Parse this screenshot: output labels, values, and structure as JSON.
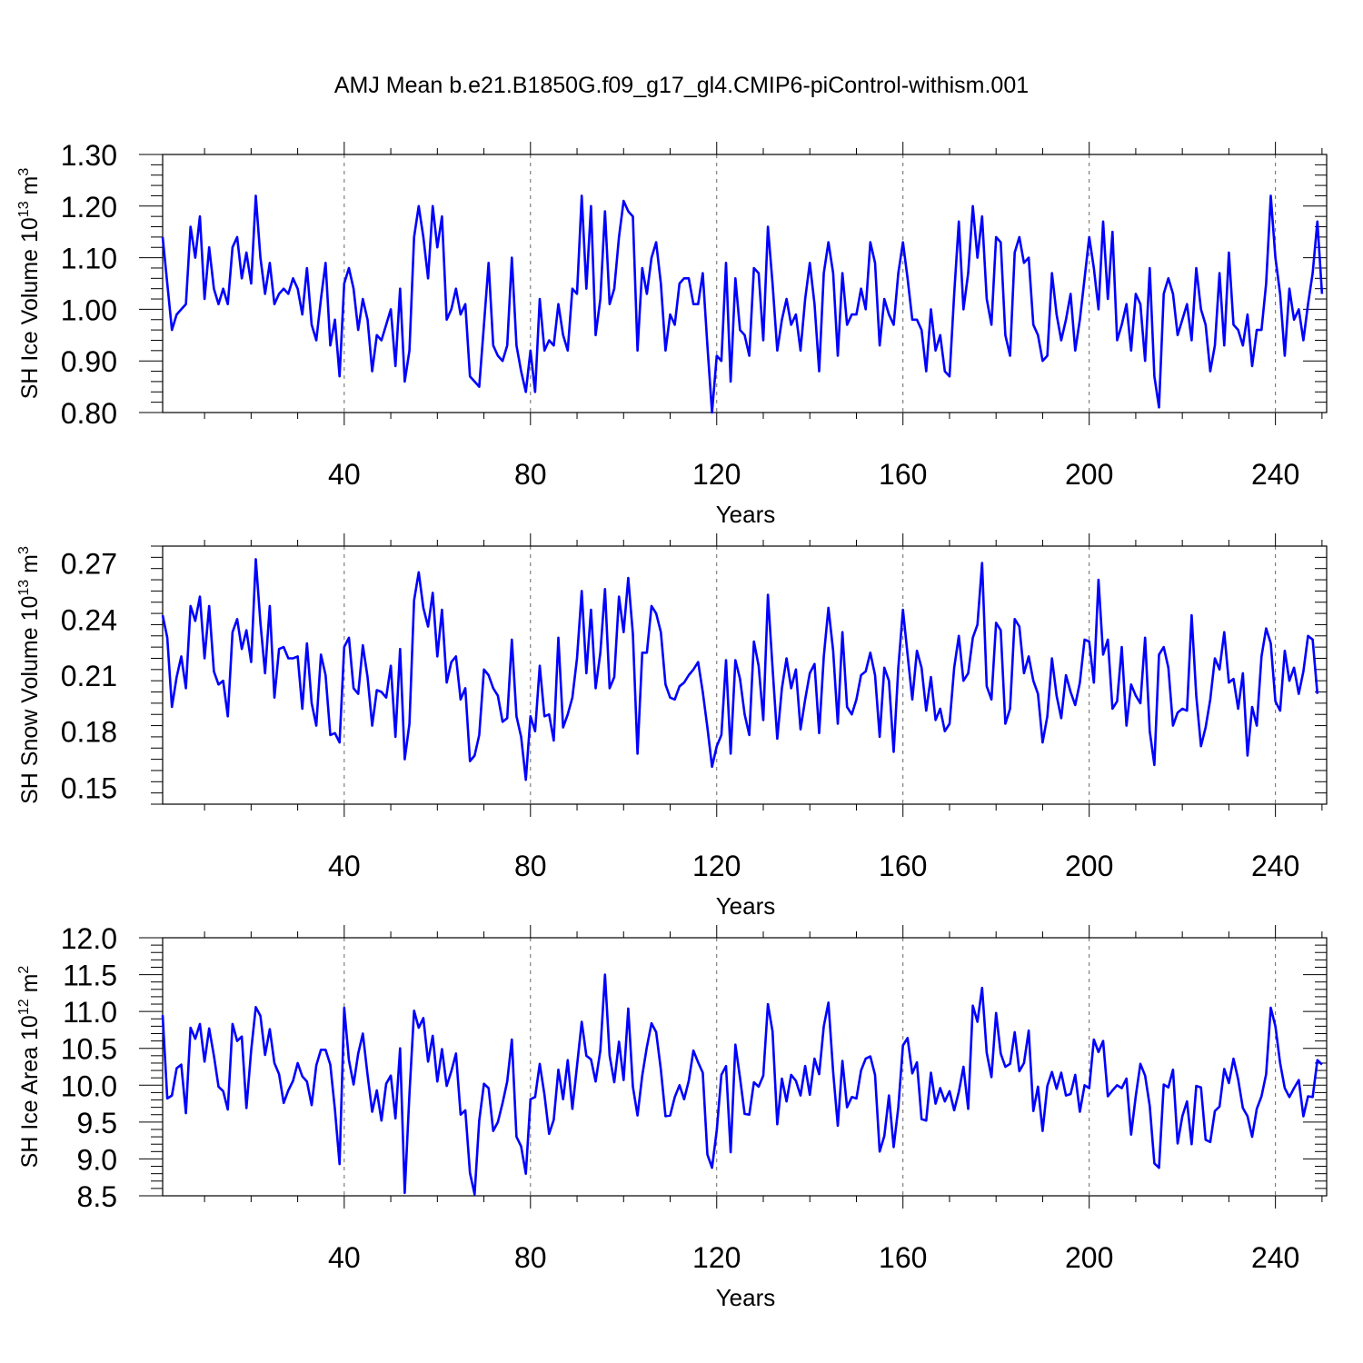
{
  "title": "AMJ Mean b.e21.B1850G.f09_g17_gl4.CMIP6-piControl-withism.001",
  "colors": {
    "line": "#0000ff",
    "axis": "#000000",
    "grid": "#666666"
  },
  "chart_data": [
    {
      "type": "line",
      "ylabel": "SH Ice Volume 10",
      "ylabel_sup": "13",
      "ylabel_unit": " m",
      "ylabel_unit_sup": "3",
      "xlabel": "Years",
      "xlim": [
        1,
        251
      ],
      "ylim": [
        0.8,
        1.3
      ],
      "xticks": [
        "40",
        "80",
        "120",
        "160",
        "200",
        "240"
      ],
      "yticks": [
        "0.80",
        "0.90",
        "1.00",
        "1.10",
        "1.20",
        "1.30"
      ],
      "series": [
        {
          "name": "SH Ice Volume",
          "start_year": 1,
          "values": [
            1.14,
            1.05,
            0.96,
            0.99,
            1.0,
            1.01,
            1.16,
            1.1,
            1.18,
            1.02,
            1.12,
            1.04,
            1.01,
            1.04,
            1.01,
            1.12,
            1.14,
            1.06,
            1.11,
            1.05,
            1.22,
            1.1,
            1.03,
            1.09,
            1.01,
            1.03,
            1.04,
            1.03,
            1.06,
            1.04,
            0.99,
            1.08,
            0.97,
            0.94,
            1.02,
            1.09,
            0.93,
            0.98,
            0.87,
            1.05,
            1.08,
            1.04,
            0.96,
            1.02,
            0.98,
            0.88,
            0.95,
            0.94,
            0.97,
            1.0,
            0.89,
            1.04,
            0.86,
            0.92,
            1.14,
            1.2,
            1.14,
            1.06,
            1.2,
            1.12,
            1.18,
            0.98,
            1.0,
            1.04,
            0.99,
            1.01,
            0.87,
            0.86,
            0.85,
            0.97,
            1.09,
            0.93,
            0.91,
            0.9,
            0.93,
            1.1,
            0.93,
            0.88,
            0.84,
            0.92,
            0.84,
            1.02,
            0.92,
            0.94,
            0.93,
            1.01,
            0.95,
            0.92,
            1.04,
            1.03,
            1.22,
            1.04,
            1.2,
            0.95,
            1.02,
            1.19,
            1.01,
            1.04,
            1.14,
            1.21,
            1.19,
            1.18,
            0.92,
            1.08,
            1.03,
            1.1,
            1.13,
            1.05,
            0.92,
            0.99,
            0.97,
            1.05,
            1.06,
            1.06,
            1.01,
            1.01,
            1.07,
            0.93,
            0.8,
            0.91,
            0.9,
            1.09,
            0.86,
            1.06,
            0.96,
            0.95,
            0.91,
            1.08,
            1.07,
            0.94,
            1.16,
            1.05,
            0.92,
            0.98,
            1.02,
            0.97,
            0.99,
            0.92,
            1.02,
            1.09,
            1.01,
            0.88,
            1.07,
            1.13,
            1.07,
            0.91,
            1.07,
            0.97,
            0.99,
            0.99,
            1.04,
            1.0,
            1.13,
            1.09,
            0.93,
            1.02,
            0.99,
            0.97,
            1.07,
            1.13,
            1.06,
            0.98,
            0.98,
            0.96,
            0.88,
            1.0,
            0.92,
            0.95,
            0.88,
            0.87,
            1.03,
            1.17,
            1.0,
            1.07,
            1.2,
            1.1,
            1.18,
            1.02,
            0.97,
            1.14,
            1.13,
            0.95,
            0.91,
            1.11,
            1.14,
            1.09,
            1.1,
            0.97,
            0.95,
            0.9,
            0.91,
            1.07,
            0.99,
            0.94,
            0.98,
            1.03,
            0.92,
            0.98,
            1.06,
            1.14,
            1.08,
            1.0,
            1.17,
            1.02,
            1.15,
            0.94,
            0.97,
            1.01,
            0.92,
            1.03,
            1.01,
            0.9,
            1.08,
            0.87,
            0.81,
            1.03,
            1.06,
            1.03,
            0.95,
            0.98,
            1.01,
            0.94,
            1.08,
            1.0,
            0.97,
            0.88,
            0.93,
            1.07,
            0.93,
            1.11,
            0.97,
            0.96,
            0.93,
            0.99,
            0.89,
            0.96,
            0.96,
            1.05,
            1.22,
            1.1,
            1.03,
            0.91,
            1.04,
            0.98,
            1.0,
            0.94,
            1.01,
            1.07,
            1.17,
            1.03
          ]
        }
      ]
    },
    {
      "type": "line",
      "ylabel": "SH Snow Volume 10",
      "ylabel_sup": "13",
      "ylabel_unit": " m",
      "ylabel_unit_sup": "3",
      "xlabel": "Years",
      "xlim": [
        1,
        251
      ],
      "ylim": [
        0.141,
        0.279
      ],
      "xticks": [
        "40",
        "80",
        "120",
        "160",
        "200",
        "240"
      ],
      "yticks": [
        "0.15",
        "0.18",
        "0.21",
        "0.24",
        "0.27"
      ],
      "series": [
        {
          "name": "SH Snow Volume",
          "start_year": 1,
          "values": [
            0.242,
            0.23,
            0.193,
            0.209,
            0.22,
            0.203,
            0.247,
            0.239,
            0.252,
            0.219,
            0.247,
            0.212,
            0.205,
            0.207,
            0.188,
            0.233,
            0.24,
            0.224,
            0.234,
            0.217,
            0.272,
            0.238,
            0.211,
            0.247,
            0.198,
            0.224,
            0.225,
            0.219,
            0.219,
            0.22,
            0.192,
            0.227,
            0.195,
            0.183,
            0.221,
            0.21,
            0.178,
            0.179,
            0.174,
            0.225,
            0.23,
            0.203,
            0.2,
            0.226,
            0.209,
            0.183,
            0.202,
            0.201,
            0.198,
            0.215,
            0.177,
            0.224,
            0.165,
            0.184,
            0.25,
            0.265,
            0.246,
            0.236,
            0.254,
            0.22,
            0.245,
            0.206,
            0.217,
            0.22,
            0.197,
            0.203,
            0.164,
            0.167,
            0.178,
            0.213,
            0.21,
            0.203,
            0.199,
            0.185,
            0.187,
            0.229,
            0.188,
            0.177,
            0.154,
            0.188,
            0.18,
            0.215,
            0.188,
            0.189,
            0.175,
            0.23,
            0.182,
            0.189,
            0.198,
            0.219,
            0.255,
            0.211,
            0.245,
            0.203,
            0.222,
            0.256,
            0.203,
            0.209,
            0.252,
            0.233,
            0.262,
            0.232,
            0.168,
            0.222,
            0.222,
            0.247,
            0.243,
            0.233,
            0.205,
            0.198,
            0.197,
            0.204,
            0.206,
            0.21,
            0.213,
            0.217,
            0.201,
            0.182,
            0.161,
            0.172,
            0.178,
            0.218,
            0.168,
            0.218,
            0.208,
            0.189,
            0.178,
            0.228,
            0.215,
            0.186,
            0.253,
            0.214,
            0.176,
            0.203,
            0.219,
            0.203,
            0.213,
            0.181,
            0.197,
            0.211,
            0.216,
            0.179,
            0.22,
            0.246,
            0.223,
            0.184,
            0.233,
            0.193,
            0.189,
            0.197,
            0.21,
            0.212,
            0.222,
            0.21,
            0.177,
            0.214,
            0.207,
            0.169,
            0.214,
            0.245,
            0.221,
            0.197,
            0.223,
            0.214,
            0.191,
            0.209,
            0.186,
            0.192,
            0.18,
            0.184,
            0.214,
            0.231,
            0.207,
            0.211,
            0.23,
            0.237,
            0.27,
            0.204,
            0.197,
            0.238,
            0.234,
            0.184,
            0.192,
            0.24,
            0.236,
            0.211,
            0.22,
            0.207,
            0.2,
            0.174,
            0.188,
            0.219,
            0.199,
            0.187,
            0.21,
            0.201,
            0.194,
            0.206,
            0.229,
            0.228,
            0.206,
            0.261,
            0.221,
            0.229,
            0.192,
            0.196,
            0.225,
            0.183,
            0.205,
            0.199,
            0.195,
            0.23,
            0.18,
            0.162,
            0.221,
            0.225,
            0.214,
            0.183,
            0.19,
            0.192,
            0.191,
            0.242,
            0.199,
            0.172,
            0.182,
            0.197,
            0.219,
            0.213,
            0.233,
            0.206,
            0.208,
            0.192,
            0.211,
            0.167,
            0.193,
            0.183,
            0.22,
            0.235,
            0.227,
            0.196,
            0.191,
            0.223,
            0.207,
            0.214,
            0.2,
            0.212,
            0.231,
            0.229,
            0.2
          ]
        }
      ]
    },
    {
      "type": "line",
      "ylabel": "SH Ice Area 10",
      "ylabel_sup": "12",
      "ylabel_unit": " m",
      "ylabel_unit_sup": "2",
      "xlabel": "Years",
      "xlim": [
        1,
        251
      ],
      "ylim": [
        8.5,
        12.0
      ],
      "xticks": [
        "40",
        "80",
        "120",
        "160",
        "200",
        "240"
      ],
      "yticks": [
        "8.5",
        "9.0",
        "9.5",
        "10.0",
        "10.5",
        "11.0",
        "11.5",
        "12.0"
      ],
      "series": [
        {
          "name": "SH Ice Area",
          "start_year": 1,
          "values": [
            10.95,
            9.82,
            9.86,
            10.23,
            10.28,
            9.62,
            10.78,
            10.63,
            10.83,
            10.32,
            10.77,
            10.4,
            9.98,
            9.92,
            9.67,
            10.83,
            10.6,
            10.66,
            9.69,
            10.47,
            11.06,
            10.94,
            10.41,
            10.76,
            10.3,
            10.15,
            9.76,
            9.93,
            10.06,
            10.3,
            10.12,
            10.05,
            9.73,
            10.27,
            10.48,
            10.48,
            10.28,
            9.67,
            8.93,
            11.05,
            10.34,
            10.01,
            10.43,
            10.7,
            10.14,
            9.64,
            9.93,
            9.52,
            10.02,
            10.13,
            9.55,
            10.5,
            8.54,
            9.88,
            11.01,
            10.78,
            10.91,
            10.32,
            10.67,
            10.05,
            10.49,
            9.99,
            10.19,
            10.43,
            9.6,
            9.66,
            8.81,
            8.52,
            9.52,
            10.02,
            9.96,
            9.38,
            9.5,
            9.76,
            10.05,
            10.62,
            9.3,
            9.17,
            8.8,
            9.81,
            9.84,
            10.29,
            9.87,
            9.34,
            9.53,
            10.21,
            9.81,
            10.34,
            9.68,
            10.26,
            10.86,
            10.4,
            10.35,
            10.05,
            10.47,
            11.5,
            10.4,
            10.04,
            10.59,
            10.07,
            11.04,
            9.98,
            9.59,
            10.13,
            10.52,
            10.84,
            10.72,
            10.21,
            9.58,
            9.59,
            9.84,
            10.0,
            9.81,
            10.06,
            10.47,
            10.31,
            10.17,
            9.06,
            8.88,
            9.39,
            10.14,
            10.26,
            9.09,
            10.55,
            10.1,
            9.61,
            9.6,
            10.04,
            9.98,
            10.13,
            11.1,
            10.73,
            9.47,
            10.09,
            9.78,
            10.14,
            10.06,
            9.86,
            10.26,
            9.87,
            10.36,
            10.15,
            10.8,
            11.12,
            10.18,
            9.45,
            10.33,
            9.7,
            9.84,
            9.82,
            10.2,
            10.36,
            10.39,
            10.14,
            9.1,
            9.31,
            9.86,
            9.16,
            9.7,
            10.54,
            10.64,
            10.16,
            10.31,
            9.54,
            9.52,
            10.17,
            9.75,
            9.96,
            9.78,
            9.92,
            9.66,
            9.91,
            10.25,
            9.68,
            11.08,
            10.86,
            11.32,
            10.44,
            10.11,
            10.98,
            10.43,
            10.25,
            10.29,
            10.72,
            10.19,
            10.3,
            10.74,
            9.65,
            9.98,
            9.38,
            9.99,
            10.18,
            9.95,
            10.17,
            9.86,
            9.88,
            10.14,
            9.64,
            10.0,
            9.96,
            10.62,
            10.45,
            10.6,
            9.85,
            9.93,
            10.0,
            9.96,
            10.09,
            9.33,
            9.85,
            10.29,
            10.13,
            9.72,
            8.94,
            8.88,
            10.01,
            9.97,
            10.21,
            9.21,
            9.58,
            9.78,
            9.2,
            9.99,
            9.97,
            9.26,
            9.23,
            9.65,
            9.71,
            10.22,
            10.03,
            10.36,
            10.08,
            9.69,
            9.58,
            9.3,
            9.68,
            9.85,
            10.15,
            11.05,
            10.8,
            10.3,
            9.96,
            9.84,
            9.96,
            10.07,
            9.58,
            9.85,
            9.84,
            10.34,
            10.28
          ]
        }
      ]
    }
  ]
}
